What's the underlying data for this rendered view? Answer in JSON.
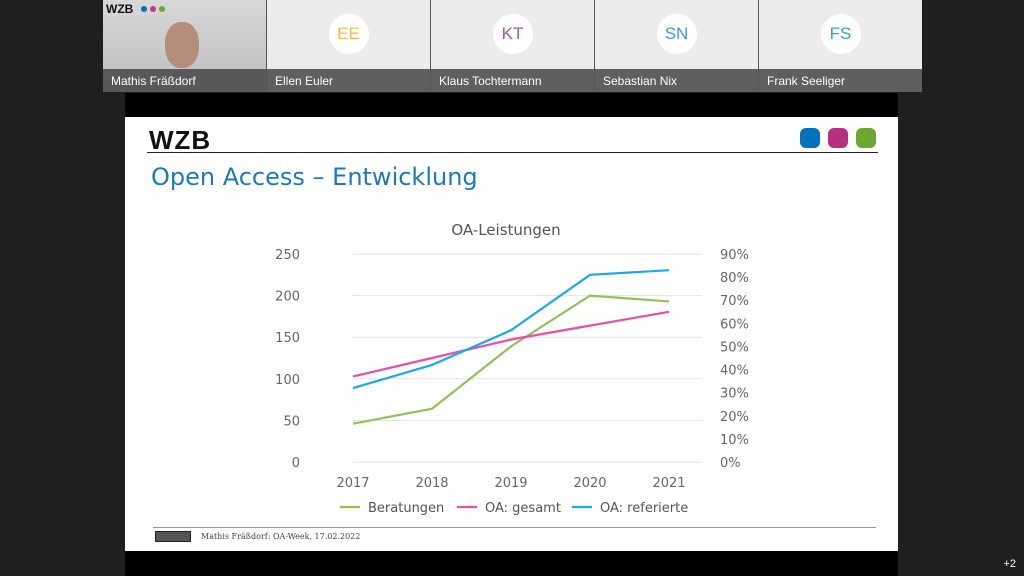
{
  "participants": [
    {
      "name": "Mathis Fräßdorf",
      "initials": "",
      "video": true,
      "logo": "WZB"
    },
    {
      "name": "Ellen Euler",
      "initials": "EE",
      "color": "#f0b94a"
    },
    {
      "name": "Klaus Tochtermann",
      "initials": "KT",
      "color": "#a05a9e"
    },
    {
      "name": "Sebastian Nix",
      "initials": "SN",
      "color": "#3a9bd5"
    },
    {
      "name": "Frank Seeliger",
      "initials": "FS",
      "color": "#3aa89a"
    }
  ],
  "slide": {
    "logo": "WZB",
    "title": "Open Access – Entwicklung",
    "footer": "Mathis Fräßdorf: OA-Week, 17.02.2022",
    "brand_colors": [
      "#0072bb",
      "#b5307e",
      "#6aa832"
    ]
  },
  "more_participants": "+2",
  "chart_data": {
    "type": "line",
    "title": "OA-Leistungen",
    "categories": [
      "2017",
      "2018",
      "2019",
      "2020",
      "2021"
    ],
    "y_left": {
      "ylim": [
        0,
        250
      ],
      "ticks": [
        "0",
        "50",
        "100",
        "150",
        "200",
        "250"
      ]
    },
    "y_right": {
      "ylim": [
        0,
        90
      ],
      "ticks": [
        "0%",
        "10%",
        "20%",
        "30%",
        "40%",
        "50%",
        "60%",
        "70%",
        "80%",
        "90%"
      ]
    },
    "series": [
      {
        "name": "Beratungen",
        "axis": "left",
        "color": "#92c15a",
        "values": [
          46,
          64,
          139,
          200,
          193
        ]
      },
      {
        "name": "OA: gesamt",
        "axis": "right",
        "color": "#e84fa8",
        "values": [
          37,
          45,
          53,
          59,
          65
        ]
      },
      {
        "name": "OA: referierte",
        "axis": "right",
        "color": "#1ea7e8",
        "values": [
          32,
          42,
          57,
          81,
          83
        ]
      }
    ],
    "legend": "bottom",
    "grid": true
  }
}
